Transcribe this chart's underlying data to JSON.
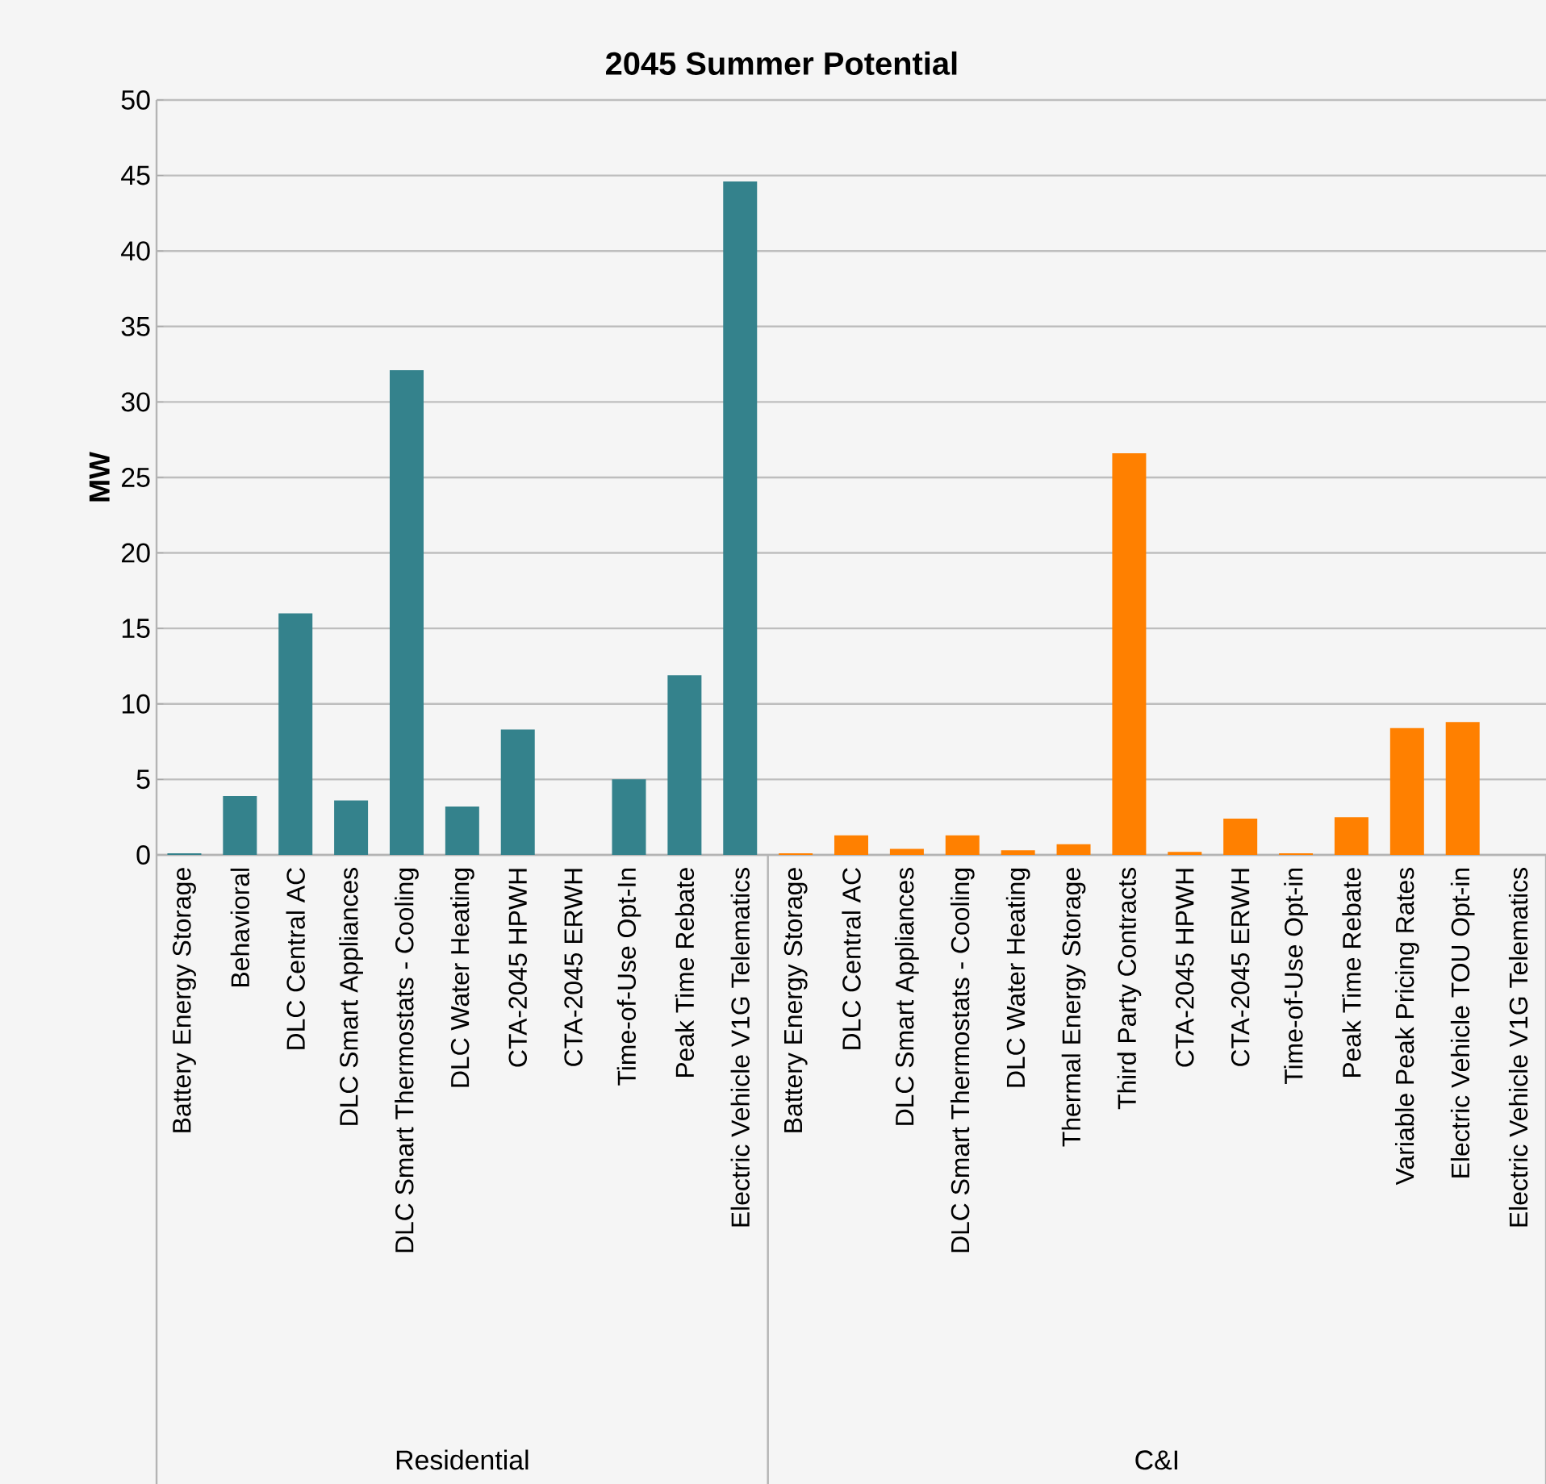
{
  "chart_data": {
    "type": "bar",
    "title": "2045 Summer Potential",
    "ylabel": "MW",
    "categories": [
      "Battery Energy Storage",
      "Behavioral",
      "DLC Central AC",
      "DLC Smart Appliances",
      "DLC Smart Thermostats - Cooling",
      "DLC Water Heating",
      "CTA-2045 HPWH",
      "CTA-2045 ERWH",
      "Time-of-Use Opt-In",
      "Peak Time Rebate",
      "Electric Vehicle V1G Telematics",
      "Battery Energy Storage",
      "DLC Central AC",
      "DLC Smart Appliances",
      "DLC Smart Thermostats - Cooling",
      "DLC Water Heating",
      "Thermal Energy Storage",
      "Third Party Contracts",
      "CTA-2045 HPWH",
      "CTA-2045 ERWH",
      "Time-of-Use Opt-in",
      "Peak Time Rebate",
      "Variable Peak Pricing Rates",
      "Electric Vehicle TOU Opt-in",
      "Electric Vehicle V1G Telematics"
    ],
    "values": [
      0.1,
      3.9,
      16.0,
      3.6,
      32.1,
      3.2,
      8.3,
      0,
      5.0,
      11.9,
      44.6,
      0.1,
      1.3,
      0.4,
      1.3,
      0.3,
      0.7,
      26.6,
      0.2,
      2.4,
      0.1,
      2.5,
      8.4,
      8.8,
      0
    ],
    "colors": [
      "#34828c",
      "#34828c",
      "#34828c",
      "#34828c",
      "#34828c",
      "#34828c",
      "#34828c",
      "#34828c",
      "#34828c",
      "#34828c",
      "#34828c",
      "#ff8000",
      "#ff8000",
      "#ff8000",
      "#ff8000",
      "#ff8000",
      "#ff8000",
      "#ff8000",
      "#ff8000",
      "#ff8000",
      "#ff8000",
      "#ff8000",
      "#ff8000",
      "#ff8000",
      "#ff8000"
    ],
    "annotations": [
      "Residential",
      "C&I"
    ],
    "ylim": [
      0,
      50
    ],
    "yticks": [
      0,
      5,
      10,
      15,
      20,
      25,
      30,
      35,
      40,
      45,
      50
    ],
    "grid": "y"
  }
}
